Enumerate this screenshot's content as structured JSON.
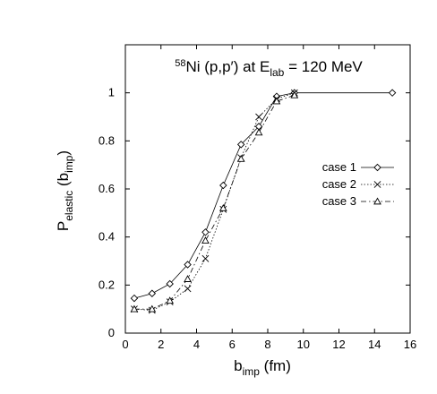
{
  "chart_data": {
    "type": "line",
    "title": {
      "sup": "58",
      "main": "Ni (p,p′)  at E",
      "sub": "lab",
      "tail": " = 120 MeV"
    },
    "xlabel": {
      "main": "b",
      "sub": "imp",
      "tail": " (fm)"
    },
    "ylabel": {
      "main": "P",
      "sub": "elastic",
      "mid": " (b",
      "sub2": "imp",
      "tail": ")"
    },
    "xlim": [
      0,
      16
    ],
    "ylim": [
      0,
      1.2
    ],
    "xticks": [
      "0",
      "2",
      "4",
      "6",
      "8",
      "10",
      "12",
      "14",
      "16"
    ],
    "yticks": [
      "0",
      "0.2",
      "0.4",
      "0.6",
      "0.8",
      "1"
    ],
    "xtick_values": [
      0,
      2,
      4,
      6,
      8,
      10,
      12,
      14,
      16
    ],
    "ytick_values": [
      0,
      0.2,
      0.4,
      0.6,
      0.8,
      1.0
    ],
    "grid": false,
    "legend_position": "right",
    "series": [
      {
        "name": "case 1",
        "marker": "diamond",
        "dash": "solid",
        "x": [
          0.5,
          1.5,
          2.5,
          3.5,
          4.5,
          5.5,
          6.5,
          7.5,
          8.5,
          9.5,
          15.0
        ],
        "y": [
          0.145,
          0.165,
          0.205,
          0.285,
          0.42,
          0.615,
          0.785,
          0.86,
          0.985,
          1.0,
          1.0
        ]
      },
      {
        "name": "case 2",
        "marker": "x",
        "dash": "dotted",
        "x": [
          0.5,
          1.5,
          2.5,
          3.5,
          4.5,
          5.5,
          6.5,
          7.5,
          8.5,
          9.5
        ],
        "y": [
          0.1,
          0.095,
          0.13,
          0.185,
          0.31,
          0.515,
          0.73,
          0.9,
          0.975,
          1.0
        ]
      },
      {
        "name": "case 3",
        "marker": "triangle",
        "dash": "dashdot",
        "x": [
          0.5,
          1.5,
          2.5,
          3.5,
          4.5,
          5.5,
          6.5,
          7.5,
          8.5,
          9.5
        ],
        "y": [
          0.1,
          0.1,
          0.135,
          0.225,
          0.385,
          0.52,
          0.725,
          0.835,
          0.965,
          0.99
        ]
      }
    ]
  }
}
